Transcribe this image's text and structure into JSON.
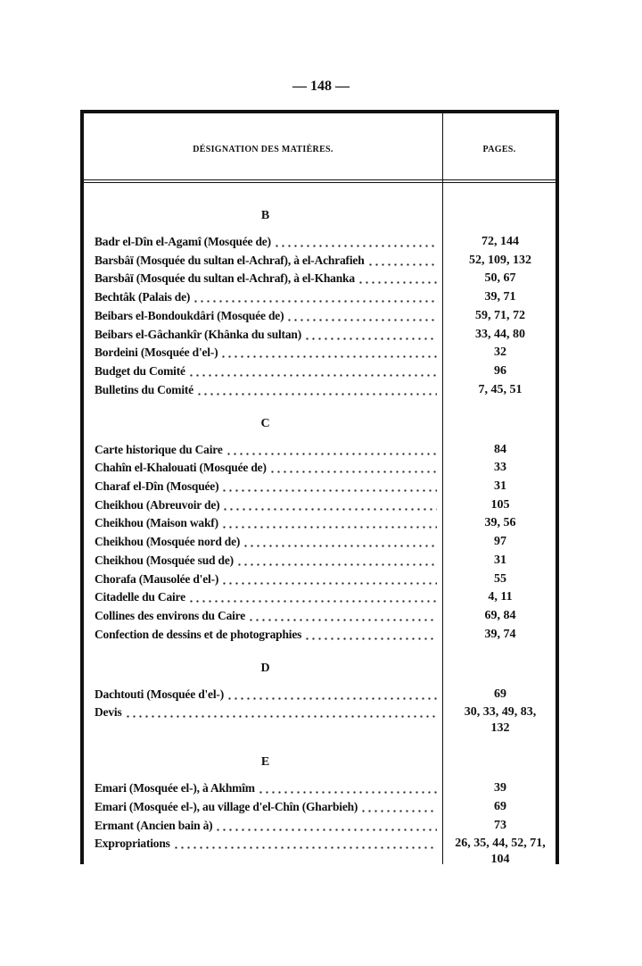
{
  "page_number": "— 148 —",
  "header": {
    "designation": "DÉSIGNATION DES MATIÈRES.",
    "pages": "PAGES."
  },
  "sections": [
    {
      "letter": "B",
      "entries": [
        {
          "title": "Badr el-Dîn el-Agamî (Mosquée de)",
          "pages": [
            "72, 144"
          ]
        },
        {
          "title": "Barsbâï (Mosquée du sultan el-Achraf), à el-Achrafieh",
          "pages": [
            "52, 109, 132"
          ]
        },
        {
          "title": "Barsbâï (Mosquée du sultan el-Achraf), à el-Khanka",
          "pages": [
            "50, 67"
          ]
        },
        {
          "title": "Bechtâk (Palais de)",
          "pages": [
            "39, 71"
          ]
        },
        {
          "title": "Beibars el-Bondoukdâri (Mosquée de)",
          "pages": [
            "59, 71, 72"
          ]
        },
        {
          "title": "Beibars el-Gâchankîr (Khânka du sultan)",
          "pages": [
            "33, 44, 80"
          ]
        },
        {
          "title": "Bordeini (Mosquée d'el-)",
          "pages": [
            "32"
          ]
        },
        {
          "title": "Budget du Comité",
          "pages": [
            "96"
          ]
        },
        {
          "title": "Bulletins du Comité",
          "pages": [
            "7, 45, 51"
          ]
        }
      ]
    },
    {
      "letter": "C",
      "entries": [
        {
          "title": "Carte historique du Caire",
          "pages": [
            "84"
          ]
        },
        {
          "title": "Chahîn el-Khalouati (Mosquée de)",
          "pages": [
            "33"
          ]
        },
        {
          "title": "Charaf el-Dîn (Mosquée)",
          "pages": [
            "31"
          ]
        },
        {
          "title": "Cheikhou (Abreuvoir de)",
          "pages": [
            "105"
          ]
        },
        {
          "title": "Cheikhou (Maison wakf)",
          "pages": [
            "39, 56"
          ]
        },
        {
          "title": "Cheikhou (Mosquée nord de)",
          "pages": [
            "97"
          ]
        },
        {
          "title": "Cheikhou (Mosquée sud de)",
          "pages": [
            "31"
          ]
        },
        {
          "title": "Chorafa (Mausolée d'el-)",
          "pages": [
            "55"
          ]
        },
        {
          "title": "Citadelle du Caire",
          "pages": [
            "4, 11"
          ]
        },
        {
          "title": "Collines des environs du Caire",
          "pages": [
            "69, 84"
          ]
        },
        {
          "title": "Confection de dessins et de photographies",
          "pages": [
            "39, 74"
          ]
        }
      ]
    },
    {
      "letter": "D",
      "entries": [
        {
          "title": "Dachtouti (Mosquée d'el-)",
          "pages": [
            "69"
          ]
        },
        {
          "title": "Devis",
          "pages": [
            "30, 33, 49, 83,",
            "132"
          ]
        }
      ]
    },
    {
      "letter": "E",
      "entries": [
        {
          "title": "Emari (Mosquée el-), à Akhmîm",
          "pages": [
            "39"
          ]
        },
        {
          "title": "Emari (Mosquée el-), au village d'el-Chîn (Gharbieh)",
          "pages": [
            "69"
          ]
        },
        {
          "title": "Ermant (Ancien bain à)",
          "pages": [
            "73"
          ]
        },
        {
          "title": "Expropriations",
          "pages": [
            "26, 35, 44, 52, 71,",
            "104"
          ]
        }
      ]
    }
  ]
}
